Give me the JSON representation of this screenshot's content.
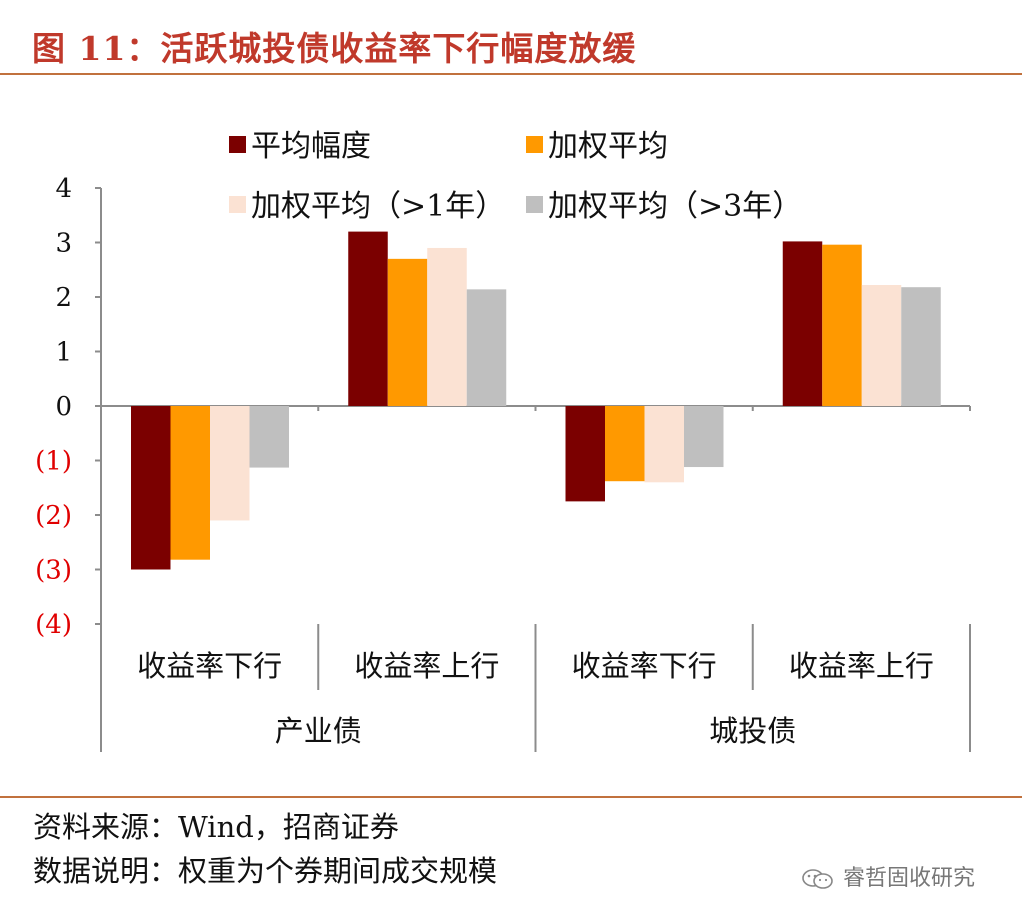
{
  "title": "图 11：活跃城投债收益率下行幅度放缓",
  "source": "资料来源：Wind，招商证券",
  "explanation": "数据说明：权重为个券期间成交规模",
  "watermark": {
    "text": "睿哲固收研究",
    "icon": "wechat-icon"
  },
  "colors": {
    "title": "#c0392b",
    "rule": "#c1713d",
    "negative_tick": "#e00000"
  },
  "chart_data": {
    "type": "bar",
    "title": "",
    "xlabel": "",
    "ylabel": "",
    "ylim": [
      -4,
      4
    ],
    "yticks": [
      {
        "value": 4,
        "label": "4"
      },
      {
        "value": 3,
        "label": "3"
      },
      {
        "value": 2,
        "label": "2"
      },
      {
        "value": 1,
        "label": "1"
      },
      {
        "value": 0,
        "label": "0"
      },
      {
        "value": -1,
        "label": "(1)"
      },
      {
        "value": -2,
        "label": "(2)"
      },
      {
        "value": -3,
        "label": "(3)"
      },
      {
        "value": -4,
        "label": "(4)"
      }
    ],
    "categories": [
      "收益率下行",
      "收益率上行",
      "收益率下行",
      "收益率上行"
    ],
    "groups": [
      {
        "label": "产业债",
        "span": [
          0,
          1
        ]
      },
      {
        "label": "城投债",
        "span": [
          2,
          3
        ]
      }
    ],
    "legend_position": "top",
    "series": [
      {
        "name": "平均幅度",
        "color": "#7b0000",
        "values": [
          -3.0,
          3.2,
          -1.75,
          3.02
        ]
      },
      {
        "name": "加权平均",
        "color": "#ff9900",
        "values": [
          -2.82,
          2.7,
          -1.38,
          2.96
        ]
      },
      {
        "name": "加权平均（>1年）",
        "color": "#fbe2d3",
        "values": [
          -2.1,
          2.9,
          -1.4,
          2.22
        ]
      },
      {
        "name": "加权平均（>3年）",
        "color": "#bfbfbf",
        "values": [
          -1.13,
          2.14,
          -1.12,
          2.18
        ]
      }
    ]
  }
}
